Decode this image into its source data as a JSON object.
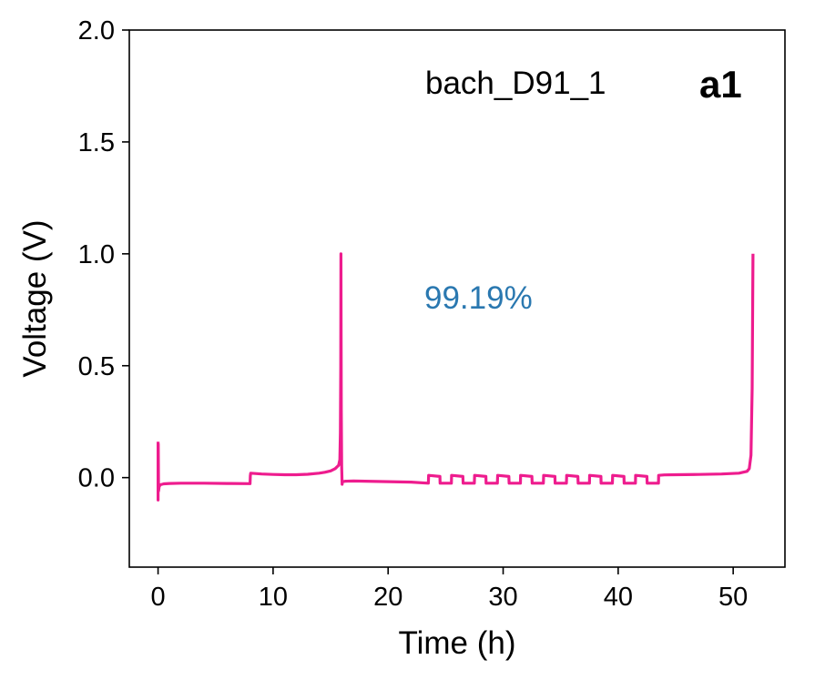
{
  "chart_data": {
    "type": "line",
    "title": "",
    "xlabel": "Time (h)",
    "ylabel": "Voltage (V)",
    "xlim": [
      -2.5,
      54.5
    ],
    "ylim": [
      -0.4,
      2.0
    ],
    "xticks": [
      0,
      10,
      20,
      30,
      40,
      50
    ],
    "yticks": [
      0.0,
      0.5,
      1.0,
      1.5,
      2.0
    ],
    "xtick_labels": [
      "0",
      "10",
      "20",
      "30",
      "40",
      "50"
    ],
    "ytick_labels": [
      "0.0",
      "0.5",
      "1.0",
      "1.5",
      "2.0"
    ],
    "grid": false,
    "line_color": "#ee1c8e",
    "annotations": {
      "cell_name": "bach_D91_1",
      "panel_label": "a1",
      "efficiency": "99.19%",
      "efficiency_color": "#2a78b0"
    },
    "series": [
      {
        "x": [
          0,
          0,
          0.02,
          0.04,
          0.1,
          0.2,
          0.5,
          1,
          2,
          4,
          6,
          8,
          8.02,
          8.05,
          9,
          10,
          11,
          12,
          13,
          14,
          14.5,
          15,
          15.4,
          15.7,
          15.8,
          15.85,
          15.88,
          15.9,
          15.93,
          15.96,
          16.0,
          16.02,
          16.1,
          16.3,
          17,
          18,
          20,
          22,
          23.5,
          23.52,
          24.5,
          24.52,
          25.5,
          25.52,
          26.5,
          26.52,
          27.5,
          27.52,
          28.5,
          28.52,
          29.5,
          29.52,
          30.5,
          30.52,
          31.5,
          31.52,
          32.5,
          32.52,
          33.5,
          33.52,
          34.5,
          34.52,
          35.5,
          35.52,
          36.5,
          36.52,
          37.5,
          37.52,
          38.5,
          38.52,
          39.5,
          39.52,
          40.5,
          40.52,
          41.5,
          41.52,
          42.5,
          42.52,
          43.5,
          43.52,
          44,
          45,
          47,
          49,
          50.5,
          51.2,
          51.4,
          51.55,
          51.65,
          51.7,
          51.72
        ],
        "y": [
          0.16,
          -0.1,
          0.15,
          -0.06,
          -0.04,
          -0.032,
          -0.028,
          -0.026,
          -0.025,
          -0.025,
          -0.026,
          -0.027,
          0.008,
          0.02,
          0.016,
          0.014,
          0.013,
          0.013,
          0.015,
          0.02,
          0.024,
          0.03,
          0.04,
          0.055,
          0.08,
          0.2,
          0.5,
          1.0,
          0.3,
          0.05,
          -0.03,
          -0.02,
          -0.018,
          -0.016,
          -0.015,
          -0.016,
          -0.018,
          -0.02,
          -0.025,
          0.01,
          0.005,
          -0.025,
          -0.025,
          0.01,
          0.005,
          -0.025,
          -0.025,
          0.01,
          0.005,
          -0.025,
          -0.025,
          0.01,
          0.005,
          -0.025,
          -0.025,
          0.01,
          0.005,
          -0.025,
          -0.025,
          0.01,
          0.005,
          -0.025,
          -0.025,
          0.01,
          0.005,
          -0.025,
          -0.025,
          0.01,
          0.005,
          -0.025,
          -0.025,
          0.01,
          0.005,
          -0.025,
          -0.025,
          0.01,
          0.005,
          -0.025,
          -0.025,
          0.01,
          0.012,
          0.013,
          0.014,
          0.016,
          0.02,
          0.028,
          0.04,
          0.1,
          0.4,
          0.8,
          1.0
        ]
      }
    ]
  }
}
